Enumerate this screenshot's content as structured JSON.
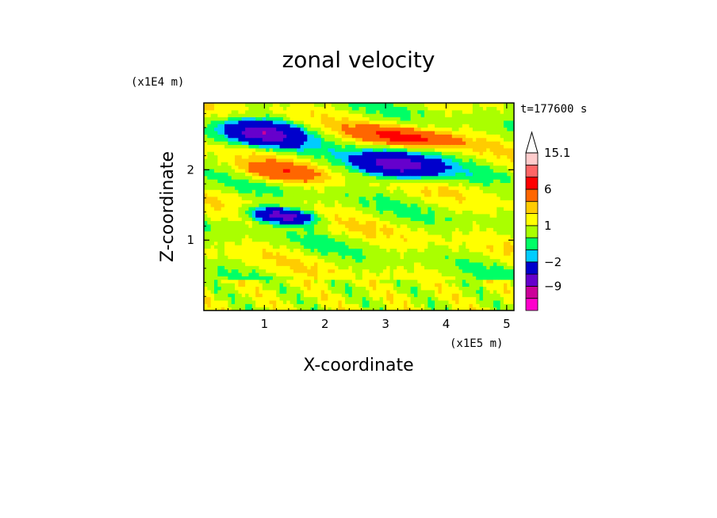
{
  "chart_data": {
    "type": "heatmap",
    "title": "zonal velocity",
    "xlabel": "X-coordinate",
    "ylabel": "Z-coordinate",
    "x_unit": "(x1E5 m)",
    "y_unit": "(x1E4 m)",
    "time_label": "t=177600 s",
    "xlim": [
      0,
      5.12
    ],
    "ylim": [
      0,
      2.95
    ],
    "x_ticks": [
      1,
      2,
      3,
      4,
      5
    ],
    "y_ticks": [
      1,
      2
    ],
    "colorbar": {
      "levels": [
        -15,
        -12,
        -9,
        -6,
        -2,
        -1,
        0,
        1,
        2,
        3,
        6,
        9,
        12,
        15.1
      ],
      "colors": [
        "#ff00cc",
        "#cc0099",
        "#6600cc",
        "#0000cc",
        "#00ccff",
        "#00ff66",
        "#aaff00",
        "#ffff00",
        "#ffcc00",
        "#ff6600",
        "#ff0000",
        "#ff6666",
        "#ffcccc"
      ],
      "labels": [
        {
          "value": 15.1,
          "text": "15.1"
        },
        {
          "value": 6,
          "text": "6"
        },
        {
          "value": 1,
          "text": "1"
        },
        {
          "value": -2,
          "text": "−2"
        },
        {
          "value": -9,
          "text": "−9"
        }
      ]
    },
    "features": [
      {
        "kind": "jet",
        "x": [
          0.35,
          1.6
        ],
        "z": [
          2.35,
          2.7
        ],
        "value": -9
      },
      {
        "kind": "jet",
        "x": [
          2.5,
          3.9
        ],
        "z": [
          1.9,
          2.25
        ],
        "value": -9
      },
      {
        "kind": "jet",
        "x": [
          0.8,
          1.8
        ],
        "z": [
          1.25,
          1.45
        ],
        "value": -9
      },
      {
        "kind": "jet",
        "x": [
          2.55,
          4.1
        ],
        "z": [
          2.35,
          2.6
        ],
        "value": 6
      },
      {
        "kind": "jet",
        "x": [
          0.6,
          1.9
        ],
        "z": [
          1.85,
          2.1
        ],
        "value": 4
      }
    ]
  }
}
